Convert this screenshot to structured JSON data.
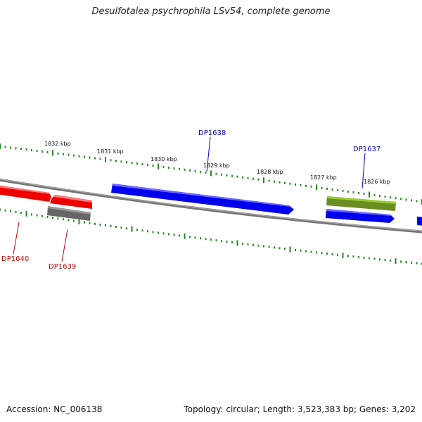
{
  "title": "Desulfotalea psychrophila LSv54, complete genome",
  "accession_text": "Accession: NC_006138",
  "summary_text": "Topology: circular; Length: 3,523,383 bp; Genes: 3,202",
  "colors": {
    "forward_strand_gene": "#0000ee",
    "reverse_strand_gene": "#ee0000",
    "rna_gene": "#6b8e23",
    "other_feature": "#666666",
    "backbone": "#888888",
    "tick": "#228b22"
  },
  "tick_labels": [
    "1832 kbp",
    "1831 kbp",
    "1830 kbp",
    "1829 kbp",
    "1828 kbp",
    "1827 kbp",
    "1826 kbp"
  ],
  "gene_labels": [
    {
      "id": "DP1638",
      "color": "#0000cc"
    },
    {
      "id": "DP1637",
      "color": "#0000cc"
    },
    {
      "id": "DP1640",
      "color": "#cc0000"
    },
    {
      "id": "DP1639",
      "color": "#cc0000"
    }
  ]
}
